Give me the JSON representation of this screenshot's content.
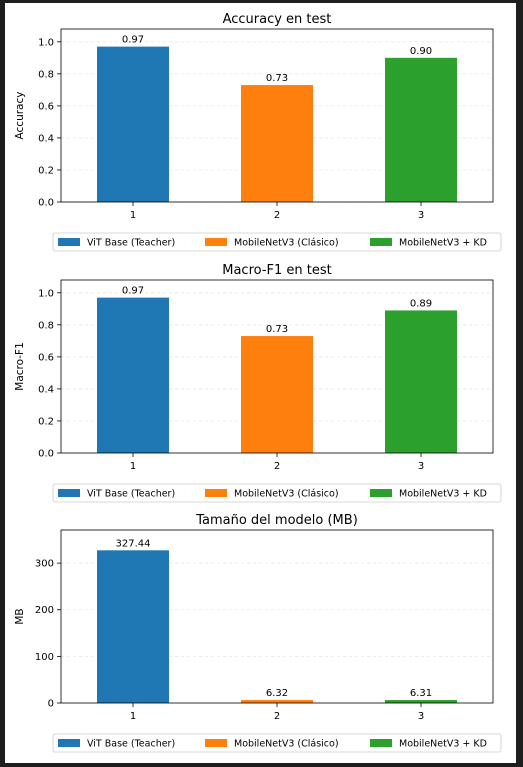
{
  "colors": {
    "series": [
      "#1f77b4",
      "#ff7f0e",
      "#2ca02c"
    ],
    "background": "#ffffff",
    "page_background": "#1e1e1e",
    "grid": "#e6e6e6"
  },
  "chart_data": [
    {
      "type": "bar",
      "title": "Accuracy en test",
      "xlabel": "",
      "ylabel": "Accuracy",
      "categories": [
        "1",
        "2",
        "3"
      ],
      "values": [
        0.97,
        0.73,
        0.9
      ],
      "value_labels": [
        "0.97",
        "0.73",
        "0.90"
      ],
      "ylim": [
        0,
        1.08
      ],
      "yticks": [
        0.0,
        0.2,
        0.4,
        0.6,
        0.8,
        1.0
      ],
      "ytick_labels": [
        "0.0",
        "0.2",
        "0.4",
        "0.6",
        "0.8",
        "1.0"
      ],
      "grid": true,
      "legend": {
        "placement": "below",
        "entries": [
          "ViT Base (Teacher)",
          "MobileNetV3 (Clásico)",
          "MobileNetV3 + KD"
        ]
      }
    },
    {
      "type": "bar",
      "title": "Macro-F1 en test",
      "xlabel": "",
      "ylabel": "Macro-F1",
      "categories": [
        "1",
        "2",
        "3"
      ],
      "values": [
        0.97,
        0.73,
        0.89
      ],
      "value_labels": [
        "0.97",
        "0.73",
        "0.89"
      ],
      "ylim": [
        0,
        1.08
      ],
      "yticks": [
        0.0,
        0.2,
        0.4,
        0.6,
        0.8,
        1.0
      ],
      "ytick_labels": [
        "0.0",
        "0.2",
        "0.4",
        "0.6",
        "0.8",
        "1.0"
      ],
      "grid": true,
      "legend": {
        "placement": "below",
        "entries": [
          "ViT Base (Teacher)",
          "MobileNetV3 (Clásico)",
          "MobileNetV3 + KD"
        ]
      }
    },
    {
      "type": "bar",
      "title": "Tamaño del modelo (MB)",
      "xlabel": "",
      "ylabel": "MB",
      "categories": [
        "1",
        "2",
        "3"
      ],
      "values": [
        327.44,
        6.32,
        6.31
      ],
      "value_labels": [
        "327.44",
        "6.32",
        "6.31"
      ],
      "ylim": [
        0,
        371
      ],
      "yticks": [
        0,
        100,
        200,
        300
      ],
      "ytick_labels": [
        "0",
        "100",
        "200",
        "300"
      ],
      "grid": true,
      "legend": {
        "placement": "below",
        "entries": [
          "ViT Base (Teacher)",
          "MobileNetV3 (Clásico)",
          "MobileNetV3 + KD"
        ]
      }
    }
  ]
}
